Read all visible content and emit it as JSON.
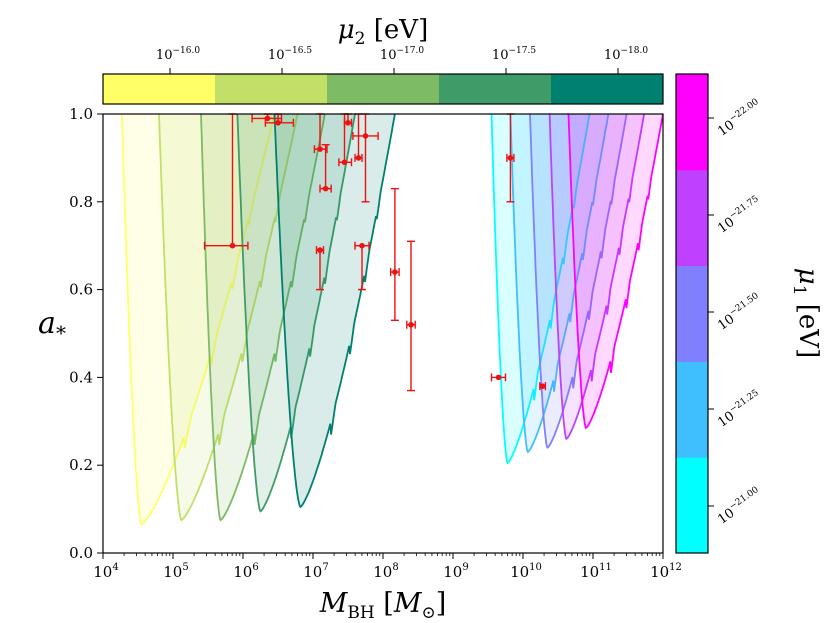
{
  "chart_data": {
    "type": "area",
    "xlabel": "M_BH [M_⊙]",
    "ylabel": "a_*",
    "x_log_range": [
      4,
      12
    ],
    "ylim": [
      0.0,
      1.0
    ],
    "x_ticks": [
      {
        "exp": 4,
        "base": "10",
        "sup": "4"
      },
      {
        "exp": 5,
        "base": "10",
        "sup": "5"
      },
      {
        "exp": 6,
        "base": "10",
        "sup": "6"
      },
      {
        "exp": 7,
        "base": "10",
        "sup": "7"
      },
      {
        "exp": 8,
        "base": "10",
        "sup": "8"
      },
      {
        "exp": 9,
        "base": "10",
        "sup": "9"
      },
      {
        "exp": 10,
        "base": "10",
        "sup": "10"
      },
      {
        "exp": 11,
        "base": "10",
        "sup": "11"
      },
      {
        "exp": 12,
        "base": "10",
        "sup": "12"
      }
    ],
    "y_ticks": [
      "0.0",
      "0.2",
      "0.4",
      "0.6",
      "0.8",
      "1.0"
    ],
    "top_colorbar": {
      "label_symbol": "μ",
      "label_sub": "2",
      "label_unit": " [eV]",
      "ticks": [
        {
          "base": "10",
          "sup": "−16.0"
        },
        {
          "base": "10",
          "sup": "−16.5"
        },
        {
          "base": "10",
          "sup": "−17.0"
        },
        {
          "base": "10",
          "sup": "−17.5"
        },
        {
          "base": "10",
          "sup": "−18.0"
        }
      ],
      "colors": [
        "#ffff66",
        "#c2e068",
        "#7dbb65",
        "#3f9c69",
        "#00806e"
      ]
    },
    "right_colorbar": {
      "label_symbol": "μ",
      "label_sub": "1",
      "label_unit": " [eV]",
      "ticks": [
        {
          "base": "10",
          "sup": "−21.00"
        },
        {
          "base": "10",
          "sup": "−21.25"
        },
        {
          "base": "10",
          "sup": "−21.50"
        },
        {
          "base": "10",
          "sup": "−21.75"
        },
        {
          "base": "10",
          "sup": "−22.00"
        }
      ],
      "colors_bottom_to_top": [
        "#00ffff",
        "#40bfff",
        "#8080ff",
        "#bf40ff",
        "#ff00ff"
      ]
    },
    "series_mu2": [
      {
        "name": "mu2 = 10^-16.0",
        "color": "#ffff66",
        "lx_left": 4.27,
        "lx_min": 4.55,
        "amin": 0.065,
        "lx_right": 6.45
      },
      {
        "name": "mu2 = 10^-16.25",
        "color": "#c2e068",
        "lx_left": 4.8,
        "lx_min": 5.12,
        "amin": 0.075,
        "lx_right": 6.78
      },
      {
        "name": "mu2 = 10^-16.5",
        "color": "#7dbb65",
        "lx_left": 5.4,
        "lx_min": 5.68,
        "amin": 0.075,
        "lx_right": 7.17
      },
      {
        "name": "mu2 = 10^-16.75",
        "color": "#3f9c69",
        "lx_left": 5.92,
        "lx_min": 6.25,
        "amin": 0.095,
        "lx_right": 7.6
      },
      {
        "name": "mu2 = 10^-17.0",
        "color": "#00806e",
        "lx_left": 6.45,
        "lx_min": 6.82,
        "amin": 0.105,
        "lx_right": 8.17
      }
    ],
    "series_mu1": [
      {
        "name": "mu1 = 10^-21.0",
        "color": "#00ffff",
        "lx_left": 9.55,
        "lx_min": 9.78,
        "amin": 0.205,
        "lx_right": 10.95
      },
      {
        "name": "mu1 = 10^-21.125",
        "color": "#40bfff",
        "lx_left": 9.82,
        "lx_min": 10.07,
        "amin": 0.23,
        "lx_right": 11.22
      },
      {
        "name": "mu1 = 10^-21.25",
        "color": "#8080ff",
        "lx_left": 10.1,
        "lx_min": 10.35,
        "amin": 0.24,
        "lx_right": 11.48
      },
      {
        "name": "mu1 = 10^-21.375",
        "color": "#bf40ff",
        "lx_left": 10.38,
        "lx_min": 10.62,
        "amin": 0.26,
        "lx_right": 11.73
      },
      {
        "name": "mu1 = 10^-21.5",
        "color": "#ff00ff",
        "lx_left": 10.65,
        "lx_min": 10.9,
        "amin": 0.285,
        "lx_right": 12.0
      }
    ],
    "measurements": [
      {
        "lx": 5.85,
        "a": 0.7,
        "a_lo": 0.0,
        "a_hi": 0.3,
        "lx_lo": 0.4,
        "lx_hi": 0.22
      },
      {
        "lx": 6.35,
        "a": 0.99,
        "a_lo": 0.0,
        "a_hi": 0.01,
        "lx_lo": 0.22,
        "lx_hi": 0.2
      },
      {
        "lx": 6.5,
        "a": 0.98,
        "a_lo": 0.0,
        "a_hi": 0.02,
        "lx_lo": 0.18,
        "lx_hi": 0.22
      },
      {
        "lx": 7.1,
        "a": 0.92,
        "a_lo": 0.0,
        "a_hi": 0.08,
        "lx_lo": 0.08,
        "lx_hi": 0.1
      },
      {
        "lx": 7.1,
        "a": 0.69,
        "a_lo": 0.09,
        "a_hi": 0.0,
        "lx_lo": 0.05,
        "lx_hi": 0.05
      },
      {
        "lx": 7.18,
        "a": 0.83,
        "a_lo": 0.0,
        "a_hi": 0.1,
        "lx_lo": 0.08,
        "lx_hi": 0.08
      },
      {
        "lx": 7.45,
        "a": 0.89,
        "a_lo": 0.0,
        "a_hi": 0.11,
        "lx_lo": 0.08,
        "lx_hi": 0.1
      },
      {
        "lx": 7.5,
        "a": 0.98,
        "a_lo": 0.0,
        "a_hi": 0.02,
        "lx_lo": 0.05,
        "lx_hi": 0.05
      },
      {
        "lx": 7.65,
        "a": 0.9,
        "a_lo": 0.0,
        "a_hi": 0.1,
        "lx_lo": 0.05,
        "lx_hi": 0.05
      },
      {
        "lx": 7.75,
        "a": 0.95,
        "a_lo": 0.15,
        "a_hi": 0.05,
        "lx_lo": 0.18,
        "lx_hi": 0.18
      },
      {
        "lx": 7.7,
        "a": 0.7,
        "a_lo": 0.1,
        "a_hi": 0.0,
        "lx_lo": 0.1,
        "lx_hi": 0.1
      },
      {
        "lx": 8.17,
        "a": 0.64,
        "a_lo": 0.11,
        "a_hi": 0.19,
        "lx_lo": 0.06,
        "lx_hi": 0.06
      },
      {
        "lx": 8.4,
        "a": 0.52,
        "a_lo": 0.15,
        "a_hi": 0.19,
        "lx_lo": 0.06,
        "lx_hi": 0.06
      },
      {
        "lx": 9.65,
        "a": 0.4,
        "a_lo": 0.0,
        "a_hi": 0.0,
        "lx_lo": 0.1,
        "lx_hi": 0.1
      },
      {
        "lx": 9.82,
        "a": 0.9,
        "a_lo": 0.1,
        "a_hi": 0.1,
        "lx_lo": 0.05,
        "lx_hi": 0.05
      },
      {
        "lx": 10.28,
        "a": 0.38,
        "a_lo": 0.0,
        "a_hi": 0.0,
        "lx_lo": 0.04,
        "lx_hi": 0.04
      }
    ],
    "marker_color": "#ee1111"
  }
}
